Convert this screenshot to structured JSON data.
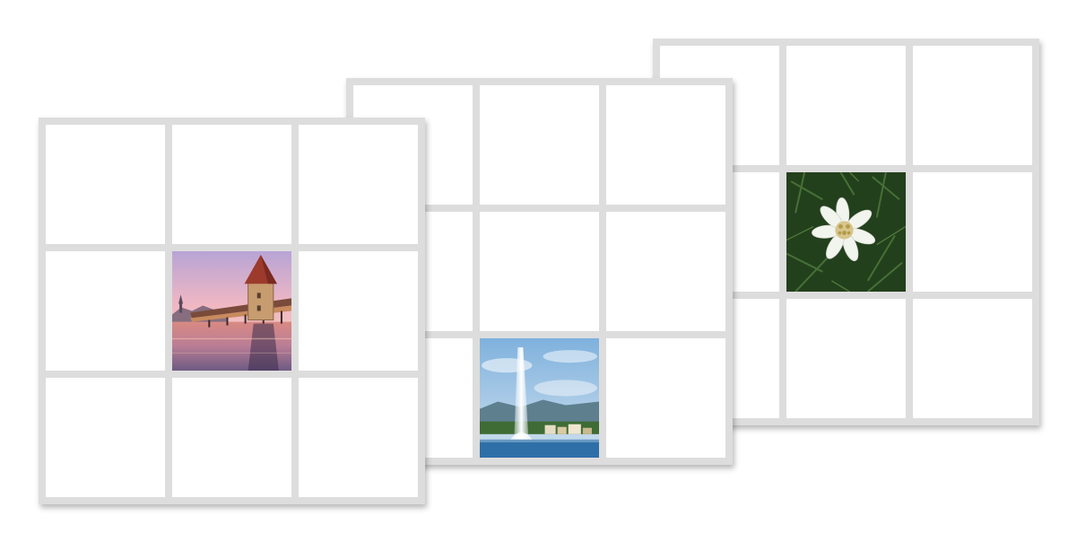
{
  "boards": [
    {
      "id": "board-1",
      "filled_cell": 4,
      "photo": "chapel-bridge-water-tower-photo"
    },
    {
      "id": "board-2",
      "filled_cell": 7,
      "photo": "lake-fountain-jet-photo"
    },
    {
      "id": "board-3",
      "filled_cell": 4,
      "photo": "edelweiss-flower-photo"
    }
  ],
  "colors": {
    "frame": "#dddddd",
    "cell": "#ffffff"
  }
}
